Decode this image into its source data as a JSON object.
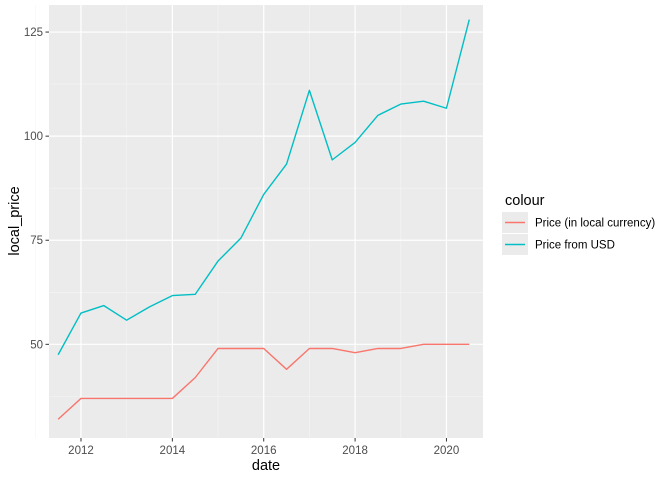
{
  "chart_data": {
    "type": "line",
    "xlabel": "date",
    "ylabel": "local_price",
    "xlim": [
      2011.3,
      2020.8
    ],
    "ylim": [
      27.5,
      131.5
    ],
    "x_ticks": [
      2012,
      2014,
      2016,
      2018,
      2020
    ],
    "x_tick_labels": [
      "2012",
      "2014",
      "2016",
      "2018",
      "2020"
    ],
    "x_minor_ticks": [
      2011,
      2013,
      2015,
      2017,
      2019
    ],
    "y_ticks": [
      50,
      75,
      100,
      125
    ],
    "y_tick_labels": [
      "50",
      "75",
      "100",
      "125"
    ],
    "y_minor_ticks": [
      37.5,
      62.5,
      87.5,
      112.5
    ],
    "grid": true,
    "panel_background": "#ebebeb",
    "legend": {
      "title": "colour",
      "placement": "right"
    },
    "series": [
      {
        "name": "Price (in local currency)",
        "color": "#f8766d",
        "points": [
          [
            2011.5,
            32
          ],
          [
            2012.0,
            37
          ],
          [
            2012.5,
            37
          ],
          [
            2013.0,
            37
          ],
          [
            2013.5,
            37
          ],
          [
            2014.0,
            37
          ],
          [
            2014.5,
            42
          ],
          [
            2015.0,
            49
          ],
          [
            2015.5,
            49
          ],
          [
            2016.0,
            49
          ],
          [
            2016.5,
            44
          ],
          [
            2017.0,
            49
          ],
          [
            2017.5,
            49
          ],
          [
            2018.0,
            48
          ],
          [
            2018.5,
            49
          ],
          [
            2019.0,
            49
          ],
          [
            2019.5,
            50
          ],
          [
            2020.0,
            50
          ],
          [
            2020.5,
            50
          ]
        ]
      },
      {
        "name": "Price from USD",
        "color": "#00bfc4",
        "points": [
          [
            2011.5,
            47.5
          ],
          [
            2012.0,
            57.5
          ],
          [
            2012.5,
            59.3
          ],
          [
            2013.0,
            55.8
          ],
          [
            2013.5,
            59.0
          ],
          [
            2014.0,
            61.7
          ],
          [
            2014.5,
            62.0
          ],
          [
            2015.0,
            70.0
          ],
          [
            2015.5,
            75.5
          ],
          [
            2016.0,
            86.0
          ],
          [
            2016.5,
            93.3
          ],
          [
            2017.0,
            111.0
          ],
          [
            2017.5,
            94.3
          ],
          [
            2018.0,
            98.5
          ],
          [
            2018.5,
            105.0
          ],
          [
            2019.0,
            107.7
          ],
          [
            2019.5,
            108.4
          ],
          [
            2020.0,
            106.7
          ],
          [
            2020.5,
            128.0
          ]
        ]
      }
    ]
  }
}
